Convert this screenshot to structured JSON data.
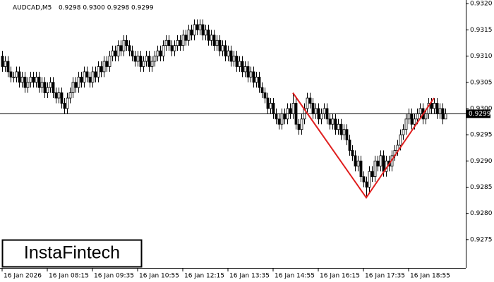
{
  "chart_data": {
    "type": "candlestick",
    "symbol": "AUDCAD,M5",
    "header_ohlc": "0.9298 0.9300 0.9298 0.9299",
    "logo": "InstaFintech",
    "ylim": [
      0.92696,
      0.93207
    ],
    "yticks": [
      {
        "value": 0.932,
        "label": "0.9320"
      },
      0.9315,
      {
        "value": 0.931,
        "label": "0.9310"
      },
      0.9305,
      {
        "value": 0.93,
        "label": "0.9300"
      },
      0.9295,
      {
        "value": 0.929,
        "label": "0.9290"
      },
      0.9285,
      {
        "value": 0.928,
        "label": "0.9280"
      },
      0.9275
    ],
    "current_price": 0.9299,
    "candle_colors": {
      "up": "#ffffff",
      "down": "#000000",
      "outline": "#000000"
    },
    "pattern": {
      "color": "#e02020",
      "x": [
        103,
        129,
        153
      ],
      "y": [
        0.9303,
        0.9283,
        0.9302
      ]
    },
    "categories": [
      "16 Jan 2026",
      null,
      null,
      null,
      null,
      null,
      null,
      null,
      null,
      null,
      null,
      null,
      null,
      null,
      null,
      null,
      "16 Jan 08:15",
      null,
      null,
      null,
      null,
      null,
      null,
      null,
      null,
      null,
      null,
      null,
      null,
      null,
      null,
      null,
      "16 Jan 09:35",
      null,
      null,
      null,
      null,
      null,
      null,
      null,
      null,
      null,
      null,
      null,
      null,
      null,
      null,
      null,
      "16 Jan 10:55",
      null,
      null,
      null,
      null,
      null,
      null,
      null,
      null,
      null,
      null,
      null,
      null,
      null,
      null,
      null,
      "16 Jan 12:15",
      null,
      null,
      null,
      null,
      null,
      null,
      null,
      null,
      null,
      null,
      null,
      null,
      null,
      null,
      null,
      "16 Jan 13:35",
      null,
      null,
      null,
      null,
      null,
      null,
      null,
      null,
      null,
      null,
      null,
      null,
      null,
      null,
      null,
      "16 Jan 14:55",
      null,
      null,
      null,
      null,
      null,
      null,
      null,
      null,
      null,
      null,
      null,
      null,
      null,
      null,
      null,
      "16 Jan 16:15",
      null,
      null,
      null,
      null,
      null,
      null,
      null,
      null,
      null,
      null,
      null,
      null,
      null,
      null,
      null,
      "16 Jan 17:35",
      null,
      null,
      null,
      null,
      null,
      null,
      null,
      null,
      null,
      null,
      null,
      null,
      null,
      null,
      null,
      "16 Jan 18:55",
      null,
      null,
      null,
      null,
      null,
      null,
      null,
      null,
      null,
      null,
      null,
      null,
      null
    ],
    "candles": [
      [
        0.931,
        0.9311,
        0.9307,
        0.9308
      ],
      [
        0.9308,
        0.931,
        0.9307,
        0.9309
      ],
      [
        0.9309,
        0.931,
        0.9306,
        0.9307
      ],
      [
        0.9307,
        0.9308,
        0.9305,
        0.9306
      ],
      [
        0.9306,
        0.9307,
        0.9305,
        0.9306
      ],
      [
        0.9306,
        0.9308,
        0.9305,
        0.9307
      ],
      [
        0.9307,
        0.9308,
        0.9304,
        0.9305
      ],
      [
        0.9305,
        0.9307,
        0.9304,
        0.9306
      ],
      [
        0.9306,
        0.9307,
        0.9303,
        0.9304
      ],
      [
        0.9304,
        0.9306,
        0.9303,
        0.9305
      ],
      [
        0.9305,
        0.9307,
        0.9304,
        0.9306
      ],
      [
        0.9306,
        0.9307,
        0.9304,
        0.9305
      ],
      [
        0.9305,
        0.9307,
        0.9304,
        0.9306
      ],
      [
        0.9306,
        0.9307,
        0.9303,
        0.9304
      ],
      [
        0.9304,
        0.9306,
        0.9303,
        0.9305
      ],
      [
        0.9305,
        0.9306,
        0.9302,
        0.9303
      ],
      [
        0.9303,
        0.9305,
        0.9302,
        0.9304
      ],
      [
        0.9304,
        0.9306,
        0.9303,
        0.9305
      ],
      [
        0.9305,
        0.9306,
        0.9302,
        0.9303
      ],
      [
        0.9303,
        0.9304,
        0.9301,
        0.9302
      ],
      [
        0.9302,
        0.9304,
        0.9301,
        0.9303
      ],
      [
        0.9303,
        0.9304,
        0.93,
        0.9301
      ],
      [
        0.9301,
        0.9302,
        0.9299,
        0.93
      ],
      [
        0.93,
        0.9303,
        0.9299,
        0.9302
      ],
      [
        0.9302,
        0.9304,
        0.9301,
        0.9303
      ],
      [
        0.9303,
        0.9306,
        0.9302,
        0.9305
      ],
      [
        0.9305,
        0.9306,
        0.9303,
        0.9304
      ],
      [
        0.9304,
        0.9307,
        0.9303,
        0.9306
      ],
      [
        0.9306,
        0.9307,
        0.9304,
        0.9305
      ],
      [
        0.9305,
        0.9308,
        0.9304,
        0.9307
      ],
      [
        0.9307,
        0.9308,
        0.9305,
        0.9306
      ],
      [
        0.9306,
        0.9307,
        0.9304,
        0.9305
      ],
      [
        0.9305,
        0.9308,
        0.9304,
        0.9307
      ],
      [
        0.9307,
        0.9308,
        0.9305,
        0.9306
      ],
      [
        0.9306,
        0.9309,
        0.9305,
        0.9308
      ],
      [
        0.9308,
        0.9309,
        0.9306,
        0.9307
      ],
      [
        0.9307,
        0.931,
        0.9306,
        0.9309
      ],
      [
        0.9309,
        0.931,
        0.9307,
        0.9308
      ],
      [
        0.9308,
        0.9311,
        0.9307,
        0.931
      ],
      [
        0.931,
        0.9312,
        0.9309,
        0.9311
      ],
      [
        0.9311,
        0.9312,
        0.9309,
        0.931
      ],
      [
        0.931,
        0.9313,
        0.9309,
        0.9312
      ],
      [
        0.9312,
        0.9313,
        0.931,
        0.9311
      ],
      [
        0.9311,
        0.9314,
        0.931,
        0.9313
      ],
      [
        0.9313,
        0.9314,
        0.9311,
        0.9312
      ],
      [
        0.9312,
        0.9313,
        0.931,
        0.9311
      ],
      [
        0.9311,
        0.9312,
        0.9309,
        0.931
      ],
      [
        0.931,
        0.9311,
        0.9308,
        0.9309
      ],
      [
        0.9309,
        0.9311,
        0.9308,
        0.931
      ],
      [
        0.931,
        0.9311,
        0.9307,
        0.9308
      ],
      [
        0.9308,
        0.931,
        0.9307,
        0.9309
      ],
      [
        0.9309,
        0.9311,
        0.9308,
        0.931
      ],
      [
        0.931,
        0.9311,
        0.9307,
        0.9308
      ],
      [
        0.9308,
        0.931,
        0.9307,
        0.9309
      ],
      [
        0.9309,
        0.9311,
        0.9308,
        0.931
      ],
      [
        0.931,
        0.9312,
        0.9309,
        0.9311
      ],
      [
        0.9311,
        0.9312,
        0.9309,
        0.931
      ],
      [
        0.931,
        0.9313,
        0.9309,
        0.9312
      ],
      [
        0.9312,
        0.9314,
        0.9311,
        0.9313
      ],
      [
        0.9313,
        0.9314,
        0.9311,
        0.9312
      ],
      [
        0.9312,
        0.9313,
        0.931,
        0.9311
      ],
      [
        0.9311,
        0.9313,
        0.931,
        0.9312
      ],
      [
        0.9312,
        0.9314,
        0.9311,
        0.9313
      ],
      [
        0.9313,
        0.9314,
        0.9311,
        0.9312
      ],
      [
        0.9312,
        0.9315,
        0.9311,
        0.9314
      ],
      [
        0.9314,
        0.9315,
        0.9312,
        0.9313
      ],
      [
        0.9313,
        0.9316,
        0.9312,
        0.9315
      ],
      [
        0.9315,
        0.9316,
        0.9313,
        0.9314
      ],
      [
        0.9314,
        0.9317,
        0.9313,
        0.9316
      ],
      [
        0.9316,
        0.9317,
        0.9314,
        0.9315
      ],
      [
        0.9315,
        0.9317,
        0.9314,
        0.9316
      ],
      [
        0.9316,
        0.9317,
        0.9313,
        0.9314
      ],
      [
        0.9314,
        0.9316,
        0.9313,
        0.9315
      ],
      [
        0.9315,
        0.9316,
        0.9312,
        0.9313
      ],
      [
        0.9313,
        0.9315,
        0.9312,
        0.9314
      ],
      [
        0.9314,
        0.9315,
        0.9311,
        0.9312
      ],
      [
        0.9312,
        0.9314,
        0.9311,
        0.9313
      ],
      [
        0.9313,
        0.9314,
        0.931,
        0.9311
      ],
      [
        0.9311,
        0.9313,
        0.931,
        0.9312
      ],
      [
        0.9312,
        0.9313,
        0.9309,
        0.931
      ],
      [
        0.931,
        0.9312,
        0.9309,
        0.9311
      ],
      [
        0.9311,
        0.9312,
        0.9308,
        0.9309
      ],
      [
        0.9309,
        0.9311,
        0.9308,
        0.931
      ],
      [
        0.931,
        0.9311,
        0.9307,
        0.9308
      ],
      [
        0.9308,
        0.931,
        0.9307,
        0.9309
      ],
      [
        0.9309,
        0.931,
        0.9306,
        0.9307
      ],
      [
        0.9307,
        0.9309,
        0.9306,
        0.9308
      ],
      [
        0.9308,
        0.9309,
        0.9305,
        0.9306
      ],
      [
        0.9306,
        0.9308,
        0.9305,
        0.9307
      ],
      [
        0.9307,
        0.9308,
        0.9304,
        0.9305
      ],
      [
        0.9305,
        0.9307,
        0.9304,
        0.9306
      ],
      [
        0.9306,
        0.9307,
        0.9303,
        0.9304
      ],
      [
        0.9304,
        0.9305,
        0.9302,
        0.9303
      ],
      [
        0.9303,
        0.9304,
        0.9301,
        0.9302
      ],
      [
        0.9302,
        0.9303,
        0.9299,
        0.93
      ],
      [
        0.93,
        0.9302,
        0.9299,
        0.9301
      ],
      [
        0.9301,
        0.9302,
        0.9298,
        0.9299
      ],
      [
        0.9299,
        0.93,
        0.9297,
        0.9298
      ],
      [
        0.9298,
        0.9299,
        0.9296,
        0.9297
      ],
      [
        0.9297,
        0.93,
        0.9296,
        0.9299
      ],
      [
        0.9299,
        0.93,
        0.9297,
        0.9298
      ],
      [
        0.9298,
        0.9301,
        0.9297,
        0.93
      ],
      [
        0.93,
        0.9301,
        0.9298,
        0.9299
      ],
      [
        0.9299,
        0.9303,
        0.9298,
        0.9301
      ],
      [
        0.9301,
        0.9302,
        0.9296,
        0.9297
      ],
      [
        0.9297,
        0.9298,
        0.9295,
        0.9296
      ],
      [
        0.9296,
        0.9299,
        0.9295,
        0.9298
      ],
      [
        0.9298,
        0.9301,
        0.9297,
        0.93
      ],
      [
        0.93,
        0.9303,
        0.9299,
        0.9302
      ],
      [
        0.9302,
        0.9303,
        0.93,
        0.9301
      ],
      [
        0.9301,
        0.9302,
        0.9298,
        0.9299
      ],
      [
        0.9299,
        0.9301,
        0.9298,
        0.93
      ],
      [
        0.93,
        0.9301,
        0.9297,
        0.9298
      ],
      [
        0.9298,
        0.93,
        0.9297,
        0.9299
      ],
      [
        0.9299,
        0.9301,
        0.9298,
        0.93
      ],
      [
        0.93,
        0.9301,
        0.9297,
        0.9298
      ],
      [
        0.9298,
        0.9299,
        0.9296,
        0.9297
      ],
      [
        0.9297,
        0.9299,
        0.9296,
        0.9298
      ],
      [
        0.9298,
        0.9299,
        0.9295,
        0.9296
      ],
      [
        0.9296,
        0.9298,
        0.9295,
        0.9297
      ],
      [
        0.9297,
        0.9298,
        0.9294,
        0.9295
      ],
      [
        0.9295,
        0.9297,
        0.9294,
        0.9296
      ],
      [
        0.9296,
        0.9297,
        0.9293,
        0.9294
      ],
      [
        0.9294,
        0.9295,
        0.9291,
        0.9292
      ],
      [
        0.9292,
        0.9293,
        0.929,
        0.9291
      ],
      [
        0.9291,
        0.9292,
        0.9288,
        0.9289
      ],
      [
        0.9289,
        0.9291,
        0.9288,
        0.929
      ],
      [
        0.929,
        0.9291,
        0.9286,
        0.9287
      ],
      [
        0.9287,
        0.9288,
        0.9285,
        0.9286
      ],
      [
        0.9286,
        0.9287,
        0.9283,
        0.9285
      ],
      [
        0.9285,
        0.9289,
        0.9284,
        0.9288
      ],
      [
        0.9288,
        0.9289,
        0.9286,
        0.9287
      ],
      [
        0.9287,
        0.9291,
        0.9286,
        0.929
      ],
      [
        0.929,
        0.9291,
        0.9288,
        0.9289
      ],
      [
        0.9289,
        0.9292,
        0.9288,
        0.9291
      ],
      [
        0.9291,
        0.9292,
        0.9287,
        0.9288
      ],
      [
        0.9288,
        0.9291,
        0.9287,
        0.929
      ],
      [
        0.929,
        0.9291,
        0.9288,
        0.9289
      ],
      [
        0.9289,
        0.9292,
        0.9288,
        0.9291
      ],
      [
        0.9291,
        0.9293,
        0.929,
        0.9292
      ],
      [
        0.9292,
        0.9294,
        0.9291,
        0.9293
      ],
      [
        0.9293,
        0.9296,
        0.9292,
        0.9295
      ],
      [
        0.9295,
        0.9297,
        0.9294,
        0.9296
      ],
      [
        0.9296,
        0.9299,
        0.9295,
        0.9298
      ],
      [
        0.9298,
        0.93,
        0.9297,
        0.9299
      ],
      [
        0.9299,
        0.93,
        0.9296,
        0.9297
      ],
      [
        0.9297,
        0.9299,
        0.9296,
        0.9298
      ],
      [
        0.9298,
        0.93,
        0.9297,
        0.9299
      ],
      [
        0.9299,
        0.9301,
        0.9298,
        0.93
      ],
      [
        0.93,
        0.9301,
        0.9297,
        0.9298
      ],
      [
        0.9298,
        0.93,
        0.9297,
        0.9299
      ],
      [
        0.9299,
        0.9302,
        0.9298,
        0.9301
      ],
      [
        0.9301,
        0.9302,
        0.9299,
        0.93
      ],
      [
        0.93,
        0.9302,
        0.9299,
        0.9301
      ],
      [
        0.9301,
        0.9302,
        0.9298,
        0.9299
      ],
      [
        0.9299,
        0.9301,
        0.9298,
        0.93
      ],
      [
        0.93,
        0.9301,
        0.9297,
        0.9298
      ],
      [
        0.9298,
        0.93,
        0.9298,
        0.9299
      ]
    ]
  }
}
